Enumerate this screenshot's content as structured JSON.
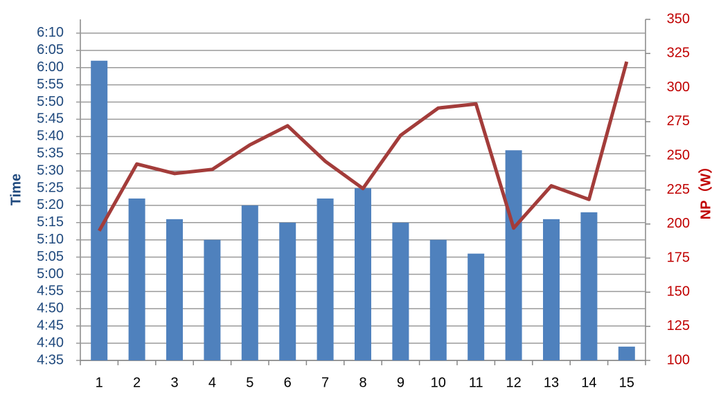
{
  "chart_data": {
    "type": "bar",
    "categories": [
      "1",
      "2",
      "3",
      "4",
      "5",
      "6",
      "7",
      "8",
      "9",
      "10",
      "11",
      "12",
      "13",
      "14",
      "15"
    ],
    "y_label": "Time",
    "y2_label": "NP（W）",
    "series": [
      {
        "type": "bar",
        "color": "#4f81bd",
        "values": [
          362,
          322,
          316,
          310,
          320,
          315,
          322,
          325,
          315,
          310,
          306,
          336,
          316,
          318,
          279
        ]
      },
      {
        "type": "line",
        "axis": "y2",
        "color": "#a33c3a",
        "values": [
          195,
          244,
          237,
          240,
          258,
          272,
          246,
          226,
          265,
          285,
          288,
          197,
          228,
          218,
          319
        ]
      }
    ],
    "ylim": [
      275,
      374
    ],
    "yticks": [
      {
        "value": 275,
        "label": "4:35"
      },
      {
        "value": 280,
        "label": "4:40"
      },
      {
        "value": 285,
        "label": "4:45"
      },
      {
        "value": 290,
        "label": "4:50"
      },
      {
        "value": 295,
        "label": "4:55"
      },
      {
        "value": 300,
        "label": "5:00"
      },
      {
        "value": 305,
        "label": "5:05"
      },
      {
        "value": 310,
        "label": "5:10"
      },
      {
        "value": 315,
        "label": "5:15"
      },
      {
        "value": 320,
        "label": "5:20"
      },
      {
        "value": 325,
        "label": "5:25"
      },
      {
        "value": 330,
        "label": "5:30"
      },
      {
        "value": 335,
        "label": "5:35"
      },
      {
        "value": 340,
        "label": "5:40"
      },
      {
        "value": 345,
        "label": "5:45"
      },
      {
        "value": 350,
        "label": "5:50"
      },
      {
        "value": 355,
        "label": "5:55"
      },
      {
        "value": 360,
        "label": "6:00"
      },
      {
        "value": 365,
        "label": "6:05"
      },
      {
        "value": 370,
        "label": "6:10"
      }
    ],
    "y2lim": [
      100,
      350
    ],
    "y2ticks": [
      100,
      125,
      150,
      175,
      200,
      225,
      250,
      275,
      300,
      325,
      350
    ],
    "grid": true
  }
}
